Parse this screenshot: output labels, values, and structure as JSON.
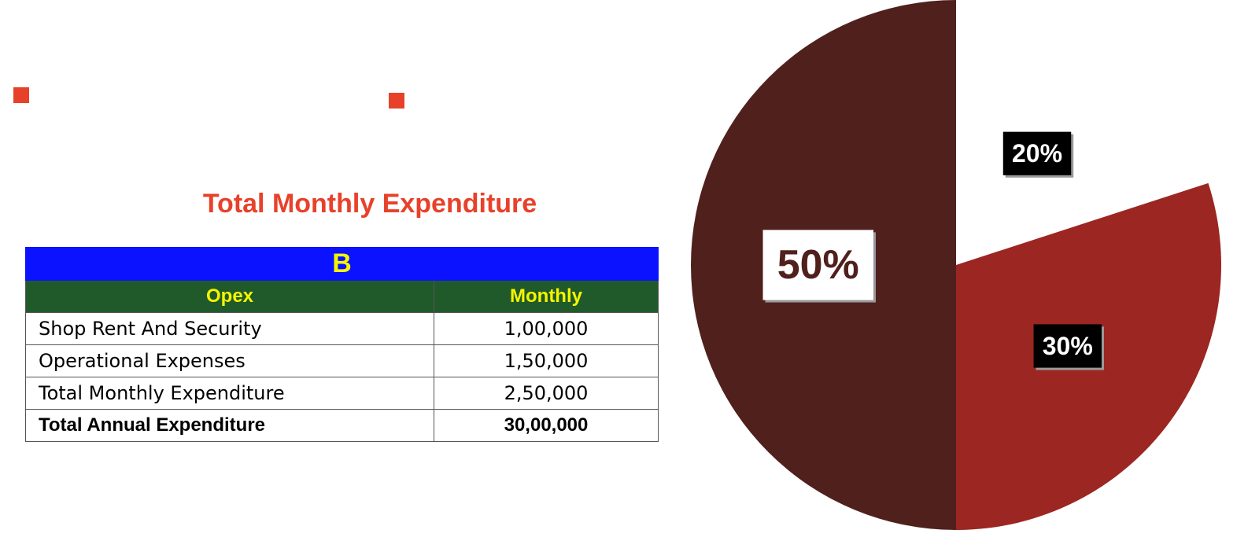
{
  "title": "Total Monthly Expenditure",
  "table": {
    "group_header": "B",
    "columns": [
      "Opex",
      "Monthly"
    ],
    "rows": [
      [
        "Shop Rent And Security",
        "1,00,000"
      ],
      [
        "Operational Expenses",
        "1,50,000"
      ],
      [
        "Total Monthly Expenditure",
        "2,50,000"
      ],
      [
        "Total Annual Expenditure",
        "30,00,000"
      ]
    ]
  },
  "chart_data": {
    "type": "pie",
    "values": [
      20,
      30,
      50
    ],
    "value_labels": [
      "20%",
      "30%",
      "50%"
    ],
    "colors": [
      "#ffffff",
      "#9b2622",
      "#50201d"
    ]
  }
}
